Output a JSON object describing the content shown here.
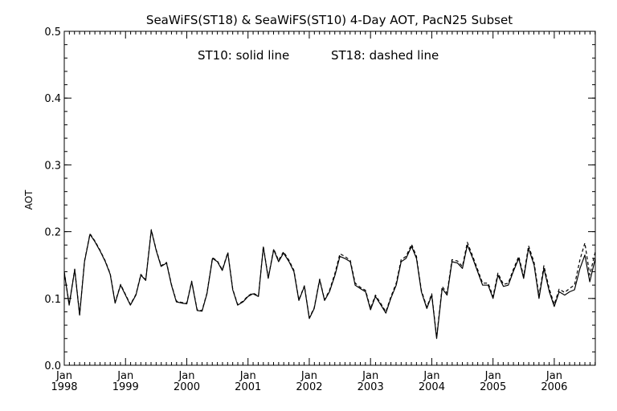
{
  "chart_data": {
    "type": "line",
    "title": "SeaWiFS(ST18) & SeaWiFS(ST10) 4-Day AOT, PacN25 Subset",
    "annotation_left": "ST10: solid line",
    "annotation_right": "ST18: dashed line",
    "xlabel": "",
    "ylabel": "AOT",
    "ylim": [
      0.0,
      0.5
    ],
    "xlim": [
      1998.0,
      2006.67
    ],
    "grid": false,
    "y_ticks": [
      "0.0",
      "0.1",
      "0.2",
      "0.3",
      "0.4",
      "0.5"
    ],
    "x_ticks": [
      {
        "month": "Jan",
        "year": "1998"
      },
      {
        "month": "Jan",
        "year": "1999"
      },
      {
        "month": "Jan",
        "year": "2000"
      },
      {
        "month": "Jan",
        "year": "2001"
      },
      {
        "month": "Jan",
        "year": "2002"
      },
      {
        "month": "Jan",
        "year": "2003"
      },
      {
        "month": "Jan",
        "year": "2004"
      },
      {
        "month": "Jan",
        "year": "2005"
      },
      {
        "month": "Jan",
        "year": "2006"
      }
    ],
    "colors": {
      "line": "#000000",
      "background": "#ffffff"
    },
    "series": [
      {
        "name": "ST10",
        "style": "solid",
        "points": [
          [
            1998.0,
            0.139
          ],
          [
            1998.08,
            0.09
          ],
          [
            1998.17,
            0.143
          ],
          [
            1998.25,
            0.075
          ],
          [
            1998.33,
            0.155
          ],
          [
            1998.42,
            0.196
          ],
          [
            1998.5,
            0.185
          ],
          [
            1998.58,
            0.172
          ],
          [
            1998.67,
            0.155
          ],
          [
            1998.75,
            0.136
          ],
          [
            1998.83,
            0.093
          ],
          [
            1998.92,
            0.12
          ],
          [
            1999.0,
            0.105
          ],
          [
            1999.08,
            0.09
          ],
          [
            1999.17,
            0.105
          ],
          [
            1999.25,
            0.135
          ],
          [
            1999.33,
            0.127
          ],
          [
            1999.42,
            0.202
          ],
          [
            1999.5,
            0.172
          ],
          [
            1999.58,
            0.148
          ],
          [
            1999.67,
            0.153
          ],
          [
            1999.75,
            0.12
          ],
          [
            1999.83,
            0.095
          ],
          [
            1999.92,
            0.093
          ],
          [
            2000.0,
            0.092
          ],
          [
            2000.08,
            0.125
          ],
          [
            2000.17,
            0.082
          ],
          [
            2000.25,
            0.081
          ],
          [
            2000.33,
            0.107
          ],
          [
            2000.42,
            0.16
          ],
          [
            2000.5,
            0.155
          ],
          [
            2000.58,
            0.142
          ],
          [
            2000.67,
            0.168
          ],
          [
            2000.75,
            0.113
          ],
          [
            2000.83,
            0.09
          ],
          [
            2000.92,
            0.095
          ],
          [
            2001.0,
            0.103
          ],
          [
            2001.08,
            0.107
          ],
          [
            2001.17,
            0.103
          ],
          [
            2001.25,
            0.177
          ],
          [
            2001.33,
            0.13
          ],
          [
            2001.42,
            0.173
          ],
          [
            2001.5,
            0.155
          ],
          [
            2001.58,
            0.168
          ],
          [
            2001.67,
            0.155
          ],
          [
            2001.75,
            0.14
          ],
          [
            2001.83,
            0.097
          ],
          [
            2001.92,
            0.118
          ],
          [
            2002.0,
            0.07
          ],
          [
            2002.08,
            0.085
          ],
          [
            2002.17,
            0.128
          ],
          [
            2002.25,
            0.097
          ],
          [
            2002.33,
            0.11
          ],
          [
            2002.42,
            0.135
          ],
          [
            2002.5,
            0.163
          ],
          [
            2002.58,
            0.16
          ],
          [
            2002.67,
            0.155
          ],
          [
            2002.75,
            0.12
          ],
          [
            2002.83,
            0.115
          ],
          [
            2002.92,
            0.11
          ],
          [
            2003.0,
            0.083
          ],
          [
            2003.08,
            0.103
          ],
          [
            2003.17,
            0.09
          ],
          [
            2003.25,
            0.078
          ],
          [
            2003.33,
            0.1
          ],
          [
            2003.42,
            0.12
          ],
          [
            2003.5,
            0.155
          ],
          [
            2003.58,
            0.16
          ],
          [
            2003.67,
            0.178
          ],
          [
            2003.75,
            0.16
          ],
          [
            2003.83,
            0.11
          ],
          [
            2003.92,
            0.085
          ],
          [
            2004.0,
            0.105
          ],
          [
            2004.08,
            0.04
          ],
          [
            2004.17,
            0.115
          ],
          [
            2004.25,
            0.105
          ],
          [
            2004.33,
            0.155
          ],
          [
            2004.42,
            0.153
          ],
          [
            2004.5,
            0.145
          ],
          [
            2004.58,
            0.18
          ],
          [
            2004.67,
            0.16
          ],
          [
            2004.75,
            0.14
          ],
          [
            2004.83,
            0.12
          ],
          [
            2004.92,
            0.12
          ],
          [
            2005.0,
            0.1
          ],
          [
            2005.08,
            0.135
          ],
          [
            2005.17,
            0.118
          ],
          [
            2005.25,
            0.12
          ],
          [
            2005.33,
            0.14
          ],
          [
            2005.42,
            0.16
          ],
          [
            2005.5,
            0.13
          ],
          [
            2005.58,
            0.175
          ],
          [
            2005.67,
            0.15
          ],
          [
            2005.75,
            0.1
          ],
          [
            2005.83,
            0.145
          ],
          [
            2005.92,
            0.11
          ],
          [
            2006.0,
            0.088
          ],
          [
            2006.08,
            0.11
          ],
          [
            2006.17,
            0.105
          ],
          [
            2006.25,
            0.11
          ],
          [
            2006.33,
            0.113
          ],
          [
            2006.42,
            0.145
          ],
          [
            2006.5,
            0.165
          ],
          [
            2006.58,
            0.125
          ],
          [
            2006.67,
            0.16
          ]
        ]
      },
      {
        "name": "ST18",
        "style": "dashed",
        "points": [
          [
            1998.0,
            0.14
          ],
          [
            1998.08,
            0.091
          ],
          [
            1998.17,
            0.144
          ],
          [
            1998.25,
            0.076
          ],
          [
            1998.33,
            0.156
          ],
          [
            1998.42,
            0.197
          ],
          [
            1998.5,
            0.186
          ],
          [
            1998.58,
            0.173
          ],
          [
            1998.67,
            0.156
          ],
          [
            1998.75,
            0.137
          ],
          [
            1998.83,
            0.094
          ],
          [
            1998.92,
            0.121
          ],
          [
            1999.0,
            0.106
          ],
          [
            1999.08,
            0.091
          ],
          [
            1999.17,
            0.106
          ],
          [
            1999.25,
            0.136
          ],
          [
            1999.33,
            0.128
          ],
          [
            1999.42,
            0.203
          ],
          [
            1999.5,
            0.173
          ],
          [
            1999.58,
            0.149
          ],
          [
            1999.67,
            0.154
          ],
          [
            1999.75,
            0.121
          ],
          [
            1999.83,
            0.096
          ],
          [
            1999.92,
            0.094
          ],
          [
            2000.0,
            0.093
          ],
          [
            2000.08,
            0.126
          ],
          [
            2000.17,
            0.083
          ],
          [
            2000.25,
            0.082
          ],
          [
            2000.33,
            0.108
          ],
          [
            2000.42,
            0.161
          ],
          [
            2000.5,
            0.156
          ],
          [
            2000.58,
            0.143
          ],
          [
            2000.67,
            0.169
          ],
          [
            2000.75,
            0.114
          ],
          [
            2000.83,
            0.091
          ],
          [
            2000.92,
            0.096
          ],
          [
            2001.0,
            0.104
          ],
          [
            2001.08,
            0.108
          ],
          [
            2001.17,
            0.104
          ],
          [
            2001.25,
            0.178
          ],
          [
            2001.33,
            0.131
          ],
          [
            2001.42,
            0.174
          ],
          [
            2001.5,
            0.157
          ],
          [
            2001.58,
            0.17
          ],
          [
            2001.67,
            0.157
          ],
          [
            2001.75,
            0.142
          ],
          [
            2001.83,
            0.098
          ],
          [
            2001.92,
            0.119
          ],
          [
            2002.0,
            0.071
          ],
          [
            2002.08,
            0.086
          ],
          [
            2002.17,
            0.129
          ],
          [
            2002.25,
            0.098
          ],
          [
            2002.33,
            0.112
          ],
          [
            2002.42,
            0.138
          ],
          [
            2002.5,
            0.167
          ],
          [
            2002.58,
            0.163
          ],
          [
            2002.67,
            0.157
          ],
          [
            2002.75,
            0.123
          ],
          [
            2002.83,
            0.117
          ],
          [
            2002.92,
            0.112
          ],
          [
            2003.0,
            0.085
          ],
          [
            2003.08,
            0.105
          ],
          [
            2003.17,
            0.092
          ],
          [
            2003.25,
            0.08
          ],
          [
            2003.33,
            0.102
          ],
          [
            2003.42,
            0.123
          ],
          [
            2003.5,
            0.158
          ],
          [
            2003.58,
            0.163
          ],
          [
            2003.67,
            0.181
          ],
          [
            2003.75,
            0.163
          ],
          [
            2003.83,
            0.112
          ],
          [
            2003.92,
            0.087
          ],
          [
            2004.0,
            0.107
          ],
          [
            2004.08,
            0.042
          ],
          [
            2004.17,
            0.118
          ],
          [
            2004.25,
            0.108
          ],
          [
            2004.33,
            0.158
          ],
          [
            2004.42,
            0.156
          ],
          [
            2004.5,
            0.148
          ],
          [
            2004.58,
            0.184
          ],
          [
            2004.67,
            0.163
          ],
          [
            2004.75,
            0.143
          ],
          [
            2004.83,
            0.123
          ],
          [
            2004.92,
            0.123
          ],
          [
            2005.0,
            0.103
          ],
          [
            2005.08,
            0.138
          ],
          [
            2005.17,
            0.121
          ],
          [
            2005.25,
            0.123
          ],
          [
            2005.33,
            0.143
          ],
          [
            2005.42,
            0.163
          ],
          [
            2005.5,
            0.133
          ],
          [
            2005.58,
            0.179
          ],
          [
            2005.67,
            0.154
          ],
          [
            2005.75,
            0.104
          ],
          [
            2005.83,
            0.149
          ],
          [
            2005.92,
            0.114
          ],
          [
            2006.0,
            0.091
          ],
          [
            2006.08,
            0.114
          ],
          [
            2006.17,
            0.109
          ],
          [
            2006.25,
            0.115
          ],
          [
            2006.33,
            0.12
          ],
          [
            2006.42,
            0.158
          ],
          [
            2006.5,
            0.183
          ],
          [
            2006.58,
            0.135
          ],
          [
            2006.67,
            0.17
          ]
        ]
      }
    ]
  }
}
